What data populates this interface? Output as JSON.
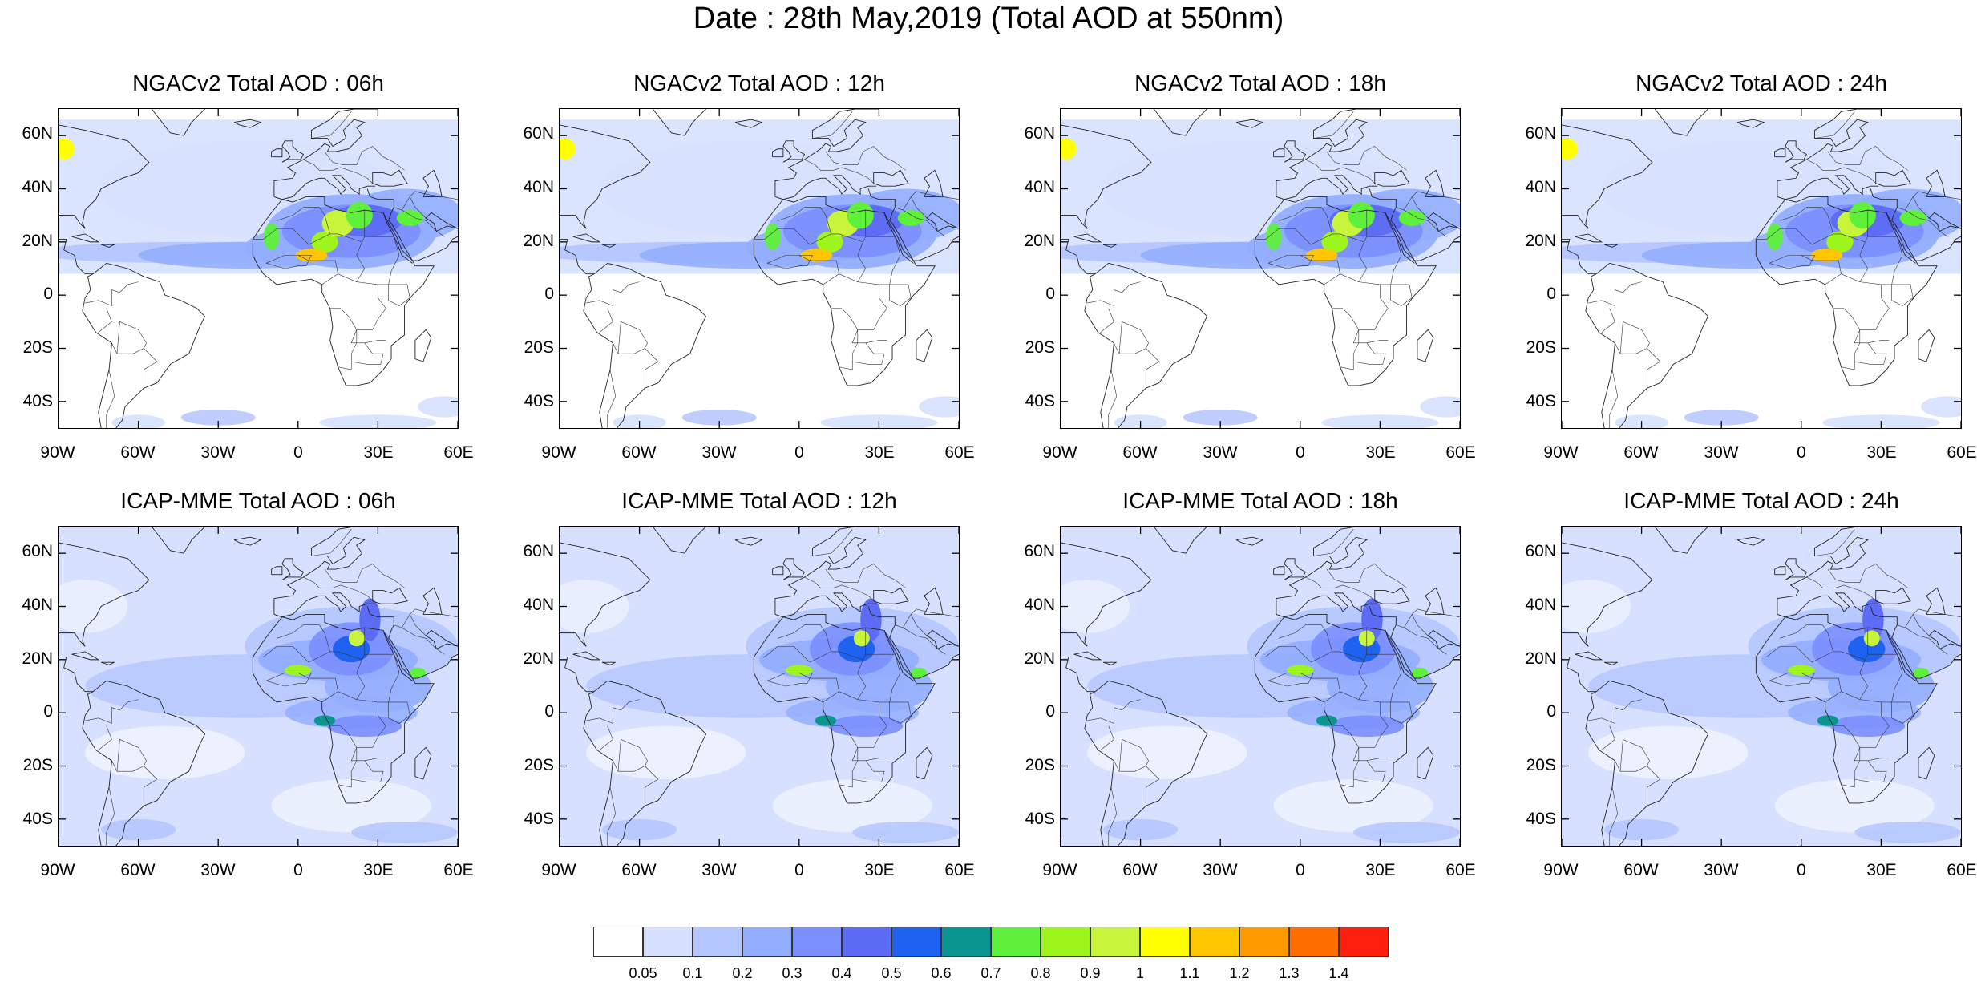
{
  "title": "Date : 28th May,2019 (Total AOD at 550nm)",
  "panels": [
    {
      "title": "NGACv2 Total AOD : 06h",
      "model": "NGACv2",
      "hour": "06h"
    },
    {
      "title": "NGACv2 Total AOD : 12h",
      "model": "NGACv2",
      "hour": "12h"
    },
    {
      "title": "NGACv2 Total AOD : 18h",
      "model": "NGACv2",
      "hour": "18h"
    },
    {
      "title": "NGACv2 Total AOD : 24h",
      "model": "NGACv2",
      "hour": "24h"
    },
    {
      "title": "ICAP-MME Total AOD : 06h",
      "model": "ICAP-MME",
      "hour": "06h"
    },
    {
      "title": "ICAP-MME Total AOD : 12h",
      "model": "ICAP-MME",
      "hour": "12h"
    },
    {
      "title": "ICAP-MME Total AOD : 18h",
      "model": "ICAP-MME",
      "hour": "18h"
    },
    {
      "title": "ICAP-MME Total AOD : 24h",
      "model": "ICAP-MME",
      "hour": "24h"
    }
  ],
  "lat_labels": [
    "60N",
    "40N",
    "20N",
    "0",
    "20S",
    "40S"
  ],
  "lat_values": [
    60,
    40,
    20,
    0,
    -20,
    -40
  ],
  "lon_labels": [
    "90W",
    "60W",
    "30W",
    "0",
    "30E",
    "60E"
  ],
  "lon_values": [
    -90,
    -60,
    -30,
    0,
    30,
    60
  ],
  "extent": {
    "lon": [
      -90,
      60
    ],
    "lat": [
      -50,
      70
    ]
  },
  "colorbar": {
    "labels": [
      "0.05",
      "0.1",
      "0.2",
      "0.3",
      "0.4",
      "0.5",
      "0.6",
      "0.7",
      "0.8",
      "0.9",
      "1",
      "1.1",
      "1.2",
      "1.3",
      "1.4"
    ],
    "colors": [
      "#ffffff",
      "#d7e1ff",
      "#b4c6ff",
      "#94aeff",
      "#7b8fff",
      "#5c6cf5",
      "#1f62f0",
      "#0a9590",
      "#5ef03a",
      "#9df51c",
      "#c8f53b",
      "#ffff00",
      "#ffc500",
      "#ff9a00",
      "#ff6e00",
      "#ff2010"
    ]
  }
}
